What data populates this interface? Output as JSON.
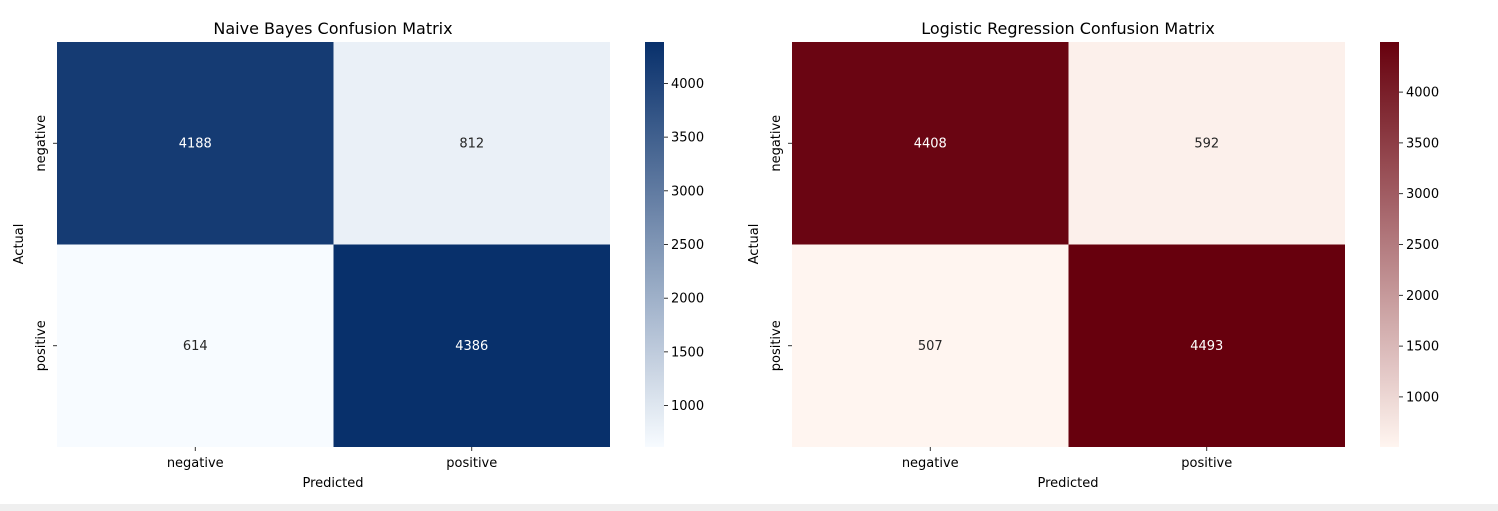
{
  "chart_data": [
    {
      "type": "heatmap",
      "title": "Naive Bayes Confusion Matrix",
      "xlabel": "Predicted",
      "ylabel": "Actual",
      "x_categories": [
        "negative",
        "positive"
      ],
      "y_categories": [
        "negative",
        "positive"
      ],
      "values": [
        [
          4188,
          812
        ],
        [
          614,
          4386
        ]
      ],
      "colormap": "Blues",
      "color_low": "#f7fbff",
      "color_high": "#08306b",
      "colorbar_range": [
        614,
        4386
      ],
      "colorbar_ticks": [
        1000,
        1500,
        2000,
        2500,
        3000,
        3500,
        4000
      ]
    },
    {
      "type": "heatmap",
      "title": "Logistic Regression Confusion Matrix",
      "xlabel": "Predicted",
      "ylabel": "Actual",
      "x_categories": [
        "negative",
        "positive"
      ],
      "y_categories": [
        "negative",
        "positive"
      ],
      "values": [
        [
          4408,
          592
        ],
        [
          507,
          4493
        ]
      ],
      "colormap": "Reds",
      "color_low": "#fff5f0",
      "color_high": "#67000d",
      "colorbar_range": [
        507,
        4493
      ],
      "colorbar_ticks": [
        1000,
        1500,
        2000,
        2500,
        3000,
        3500,
        4000
      ]
    }
  ]
}
